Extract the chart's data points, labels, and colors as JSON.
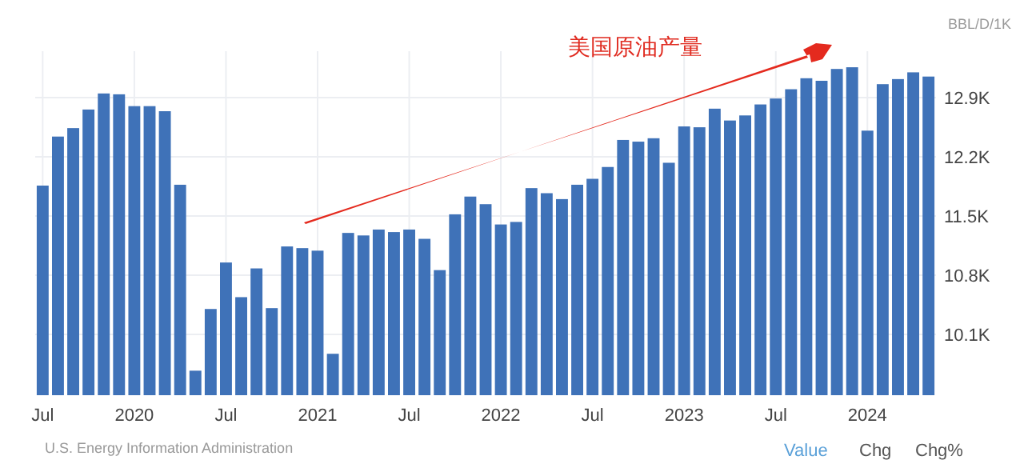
{
  "chart_data": {
    "type": "bar",
    "title": "美国原油产量",
    "ylabel": "BBL/D/1K",
    "categories": [
      "Jul",
      null,
      null,
      null,
      null,
      null,
      "2020",
      null,
      null,
      null,
      null,
      null,
      "Jul",
      null,
      null,
      null,
      null,
      null,
      "2021",
      null,
      null,
      null,
      null,
      null,
      "Jul",
      null,
      null,
      null,
      null,
      null,
      "2022",
      null,
      null,
      null,
      null,
      null,
      "Jul",
      null,
      null,
      null,
      null,
      null,
      "2023",
      null,
      null,
      null,
      null,
      null,
      "Jul",
      null,
      null,
      null,
      null,
      null,
      "2024",
      null,
      null,
      null,
      null
    ],
    "values": [
      11.86,
      12.44,
      12.54,
      12.76,
      12.95,
      12.94,
      12.8,
      12.8,
      12.74,
      11.87,
      9.67,
      10.4,
      10.95,
      10.54,
      10.88,
      10.41,
      11.14,
      11.12,
      11.09,
      9.87,
      11.3,
      11.27,
      11.34,
      11.31,
      11.34,
      11.23,
      10.86,
      11.52,
      11.73,
      11.64,
      11.4,
      11.43,
      11.83,
      11.77,
      11.7,
      11.87,
      11.94,
      12.08,
      12.4,
      12.38,
      12.42,
      12.13,
      12.56,
      12.55,
      12.77,
      12.63,
      12.69,
      12.82,
      12.89,
      13.0,
      13.13,
      13.1,
      13.24,
      13.26,
      12.51,
      13.06,
      13.12,
      13.2,
      13.15
    ],
    "color": "#3f72b8",
    "ylim": [
      9.38,
      13.45
    ],
    "yticks": [
      {
        "value": 10.1,
        "label": "10.1K"
      },
      {
        "value": 10.8,
        "label": "10.8K"
      },
      {
        "value": 11.5,
        "label": "11.5K"
      },
      {
        "value": 12.2,
        "label": "12.2K"
      },
      {
        "value": 12.9,
        "label": "12.9K"
      }
    ],
    "grid": true,
    "annotations": [
      "U.S. Energy Information Administration",
      "Value",
      "Chg",
      "Chg%"
    ]
  }
}
